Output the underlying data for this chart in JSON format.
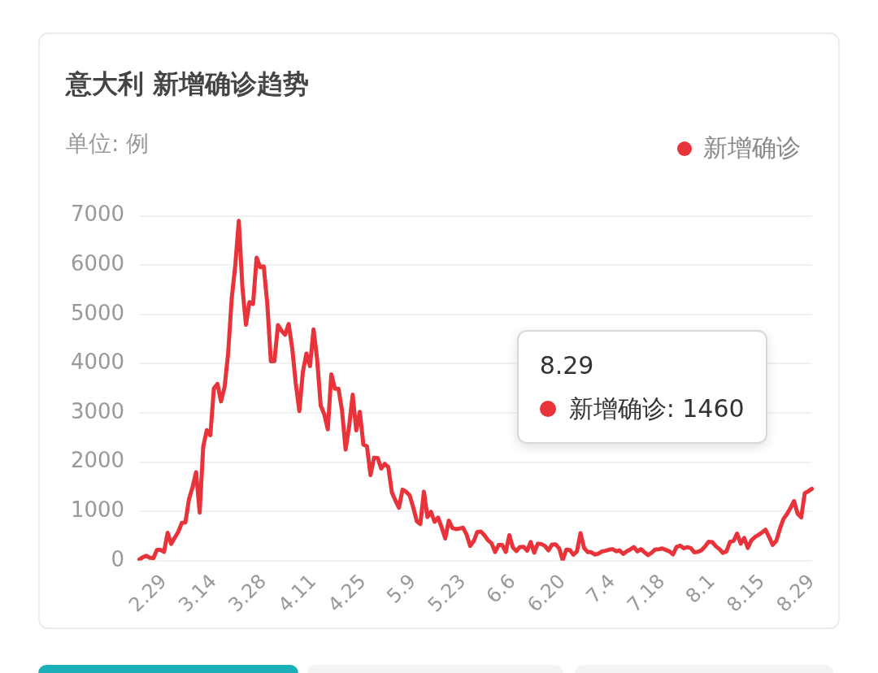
{
  "chart_data": {
    "type": "line",
    "title": "意大利 新增确诊趋势",
    "subtitle": "单位: 例",
    "legend": "top right",
    "marker": "none",
    "line_style": "solid",
    "grid": "y",
    "categories": [
      null,
      null,
      null,
      null,
      null,
      null,
      null,
      "2.29",
      null,
      null,
      null,
      null,
      null,
      null,
      null,
      null,
      null,
      null,
      null,
      null,
      null,
      "3.14",
      null,
      null,
      null,
      null,
      null,
      null,
      null,
      null,
      null,
      null,
      null,
      null,
      null,
      "3.28",
      null,
      null,
      null,
      null,
      null,
      null,
      null,
      null,
      null,
      null,
      null,
      null,
      null,
      "4.11",
      null,
      null,
      null,
      null,
      null,
      null,
      null,
      null,
      null,
      null,
      null,
      null,
      null,
      "4.25",
      null,
      null,
      null,
      null,
      null,
      null,
      null,
      null,
      null,
      null,
      null,
      null,
      null,
      "5.9",
      null,
      null,
      null,
      null,
      null,
      null,
      null,
      null,
      null,
      null,
      null,
      null,
      null,
      "5.23",
      null,
      null,
      null,
      null,
      null,
      null,
      null,
      null,
      null,
      null,
      null,
      null,
      null,
      "6.6",
      null,
      null,
      null,
      null,
      null,
      null,
      null,
      null,
      null,
      null,
      null,
      null,
      null,
      "6.20",
      null,
      null,
      null,
      null,
      null,
      null,
      null,
      null,
      null,
      null,
      null,
      null,
      null,
      "7.4",
      null,
      null,
      null,
      null,
      null,
      null,
      null,
      null,
      null,
      null,
      null,
      null,
      null,
      "7.18",
      null,
      null,
      null,
      null,
      null,
      null,
      null,
      null,
      null,
      null,
      null,
      null,
      null,
      "8.1",
      null,
      null,
      null,
      null,
      null,
      null,
      null,
      null,
      null,
      null,
      null,
      null,
      null,
      "8.15",
      null,
      null,
      null,
      null,
      null,
      null,
      null,
      null,
      null,
      null,
      null,
      null,
      null,
      "8.29"
    ],
    "series": [
      {
        "name": "新增确诊",
        "color": "#e8333a",
        "values": [
          20,
          70,
          100,
          60,
          50,
          220,
          220,
          180,
          566,
          342,
          466,
          587,
          769,
          778,
          1247,
          1492,
          1797,
          977,
          2313,
          2651,
          2547,
          3497,
          3590,
          3233,
          3526,
          4207,
          5322,
          5986,
          6900,
          5560,
          4789,
          5249,
          5210,
          6153,
          5959,
          5974,
          5217,
          4050,
          4053,
          4782,
          4668,
          4585,
          4805,
          4316,
          3599,
          3039,
          3836,
          4204,
          3951,
          4694,
          4092,
          3153,
          2972,
          2667,
          3786,
          3493,
          3491,
          3047,
          2256,
          2729,
          3370,
          2646,
          3021,
          2357,
          2324,
          1739,
          2091,
          2086,
          1872,
          1965,
          1900,
          1389,
          1221,
          1075,
          1444,
          1401,
          1327,
          1083,
          802,
          744,
          1402,
          888,
          992,
          789,
          875,
          675,
          451,
          813,
          665,
          642,
          652,
          669,
          531,
          300,
          397,
          584,
          593,
          516,
          416,
          355,
          178,
          318,
          321,
          177,
          518,
          270,
          197,
          280,
          283,
          202,
          379,
          163,
          346,
          338,
          301,
          210,
          329,
          333,
          251,
          10,
          224,
          218,
          122,
          190,
          560,
          259,
          175,
          174,
          126,
          142,
          187,
          201,
          223,
          235,
          192,
          208,
          138,
          193,
          229,
          276,
          188,
          234,
          169,
          114,
          162,
          230,
          233,
          249,
          219,
          190,
          129,
          282,
          306,
          252,
          275,
          255,
          170,
          181,
          212,
          289,
          386,
          379,
          295,
          239,
          159,
          190,
          384,
          402,
          552,
          347,
          463,
          259,
          412,
          481,
          523,
          574,
          629,
          479,
          320,
          403,
          642,
          845,
          947,
          1071,
          1210,
          953,
          878,
          1367,
          1411,
          1460
        ]
      }
    ],
    "ylim": [
      0,
      7000
    ],
    "yticks": [
      0,
      1000,
      2000,
      3000,
      4000,
      5000,
      6000,
      7000
    ],
    "annotations": [
      "8.29",
      "新增确诊: 1460"
    ]
  }
}
